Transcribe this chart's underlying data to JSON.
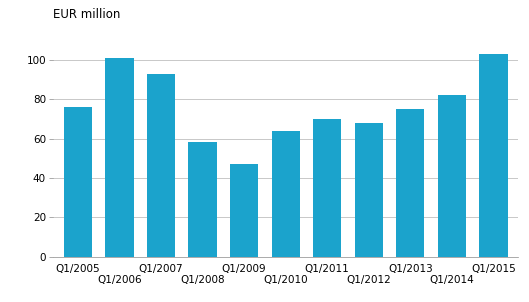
{
  "categories": [
    "Q1/2005",
    "Q1/2006",
    "Q1/2007",
    "Q1/2008",
    "Q1/2009",
    "Q1/2010",
    "Q1/2011",
    "Q1/2012",
    "Q1/2013",
    "Q1/2014",
    "Q1/2015"
  ],
  "values": [
    76,
    101,
    93,
    58,
    47,
    64,
    70,
    68,
    75,
    82,
    103
  ],
  "bar_color": "#1ba3cc",
  "ylabel": "EUR million",
  "ylim": [
    0,
    115
  ],
  "yticks": [
    0,
    20,
    40,
    60,
    80,
    100
  ],
  "background_color": "#ffffff",
  "grid_color": "#c8c8c8",
  "label_fontsize": 7.5,
  "ylabel_fontsize": 8.5
}
